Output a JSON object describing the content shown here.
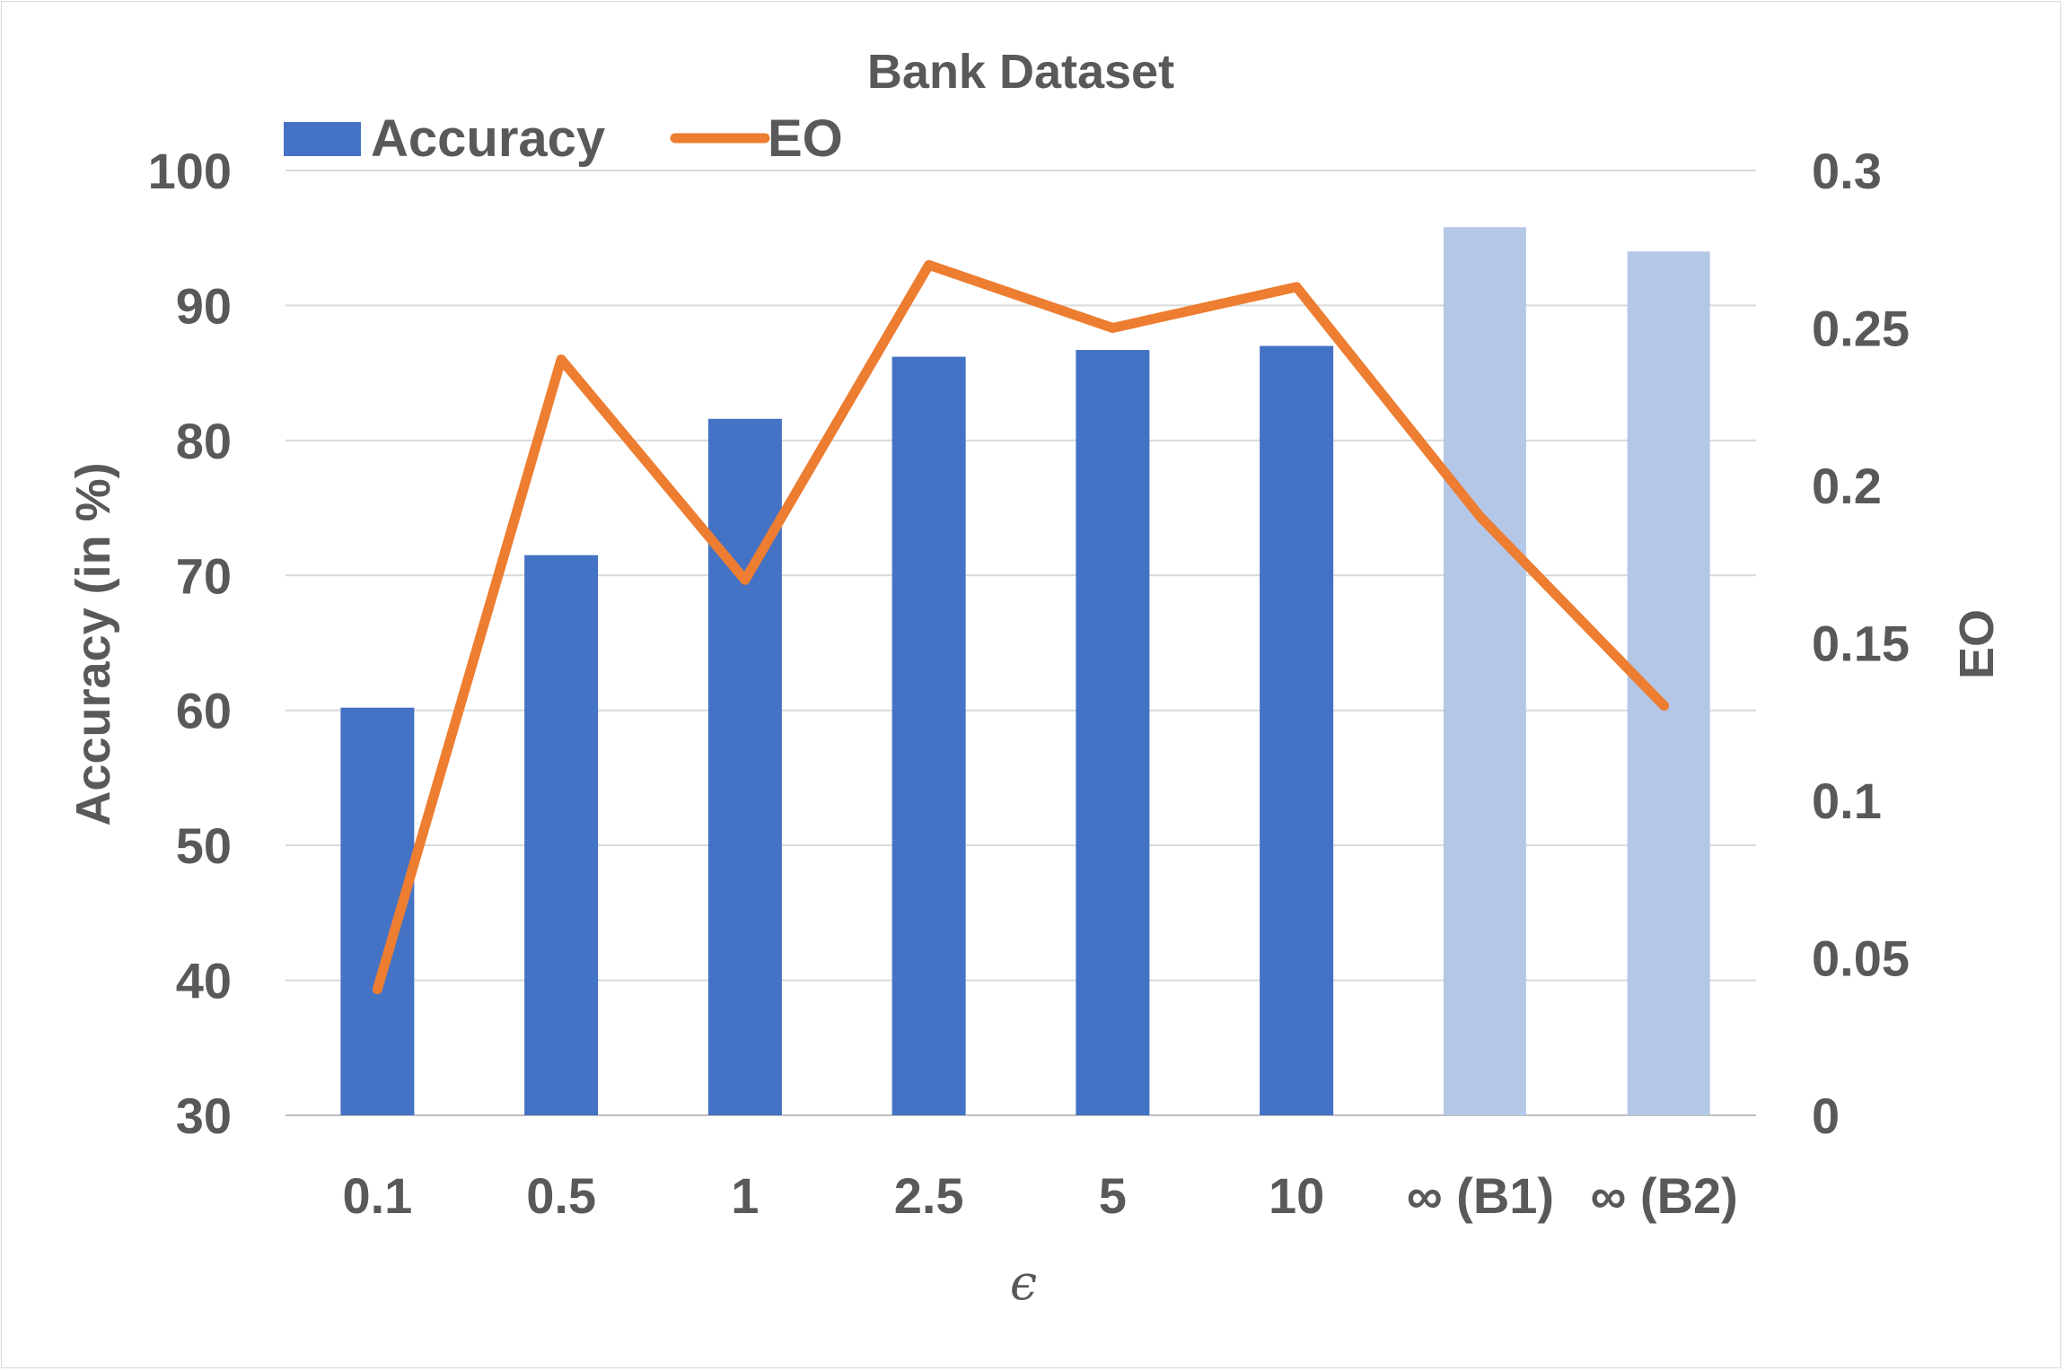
{
  "chart_data": {
    "type": "bar+line",
    "title": "Bank Dataset",
    "xlabel": "ϵ",
    "ylabel_left": "Accuracy (in %)",
    "ylabel_right": "EO",
    "categories": [
      "0.1",
      "0.5",
      "1",
      "2.5",
      "5",
      "10",
      "∞ (B1)",
      "∞ (B2)"
    ],
    "series": [
      {
        "name": "Accuracy",
        "kind": "bar",
        "axis": "left",
        "color": "#4472C4",
        "baseline_color": "#B4C7E7",
        "values": [
          60.2,
          71.5,
          81.6,
          86.2,
          86.7,
          87.0,
          95.8,
          94.0
        ]
      },
      {
        "name": "EO",
        "kind": "line",
        "axis": "right",
        "color": "#ED7D31",
        "values": [
          0.04,
          0.24,
          0.17,
          0.27,
          0.25,
          0.263,
          0.19,
          0.13
        ]
      }
    ],
    "baseline_categories": [
      "∞ (B1)",
      "∞ (B2)"
    ],
    "ylim_left": [
      30,
      100
    ],
    "yticks_left": [
      "30",
      "40",
      "50",
      "60",
      "70",
      "80",
      "90",
      "100"
    ],
    "ylim_right": [
      0,
      0.3
    ],
    "yticks_right": [
      "0",
      "0.05",
      "0.1",
      "0.15",
      "0.2",
      "0.25",
      "0.3"
    ],
    "grid": true,
    "legend": "top-left"
  }
}
